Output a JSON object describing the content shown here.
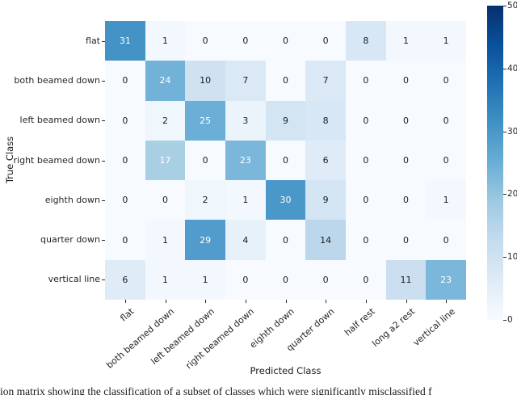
{
  "figure": {
    "caption": "ion matrix showing the classification of a subset of classes which were significantly misclassified f"
  },
  "chart_data": {
    "type": "heatmap",
    "title": "",
    "xlabel": "Predicted Class",
    "ylabel": "True Class",
    "x_categories": [
      "flat",
      "both beamed down",
      "left beamed down",
      "right beamed down",
      "eighth down",
      "quarter down",
      "half rest",
      "long a2 rest",
      "vertical line"
    ],
    "y_categories": [
      "flat",
      "both beamed down",
      "left beamed down",
      "right beamed down",
      "eighth down",
      "quarter down",
      "vertical line"
    ],
    "matrix": [
      [
        31,
        1,
        0,
        0,
        0,
        0,
        8,
        1,
        1
      ],
      [
        0,
        24,
        10,
        7,
        0,
        7,
        0,
        0,
        0
      ],
      [
        0,
        2,
        25,
        3,
        9,
        8,
        0,
        0,
        0
      ],
      [
        0,
        17,
        0,
        23,
        0,
        6,
        0,
        0,
        0
      ],
      [
        0,
        0,
        2,
        1,
        30,
        9,
        0,
        0,
        1
      ],
      [
        0,
        1,
        29,
        4,
        0,
        14,
        0,
        0,
        0
      ],
      [
        6,
        1,
        1,
        0,
        0,
        0,
        0,
        11,
        23
      ]
    ],
    "vmin": 0,
    "vmax": 50,
    "colormap": "Blues",
    "colorbar_tick_labels": [
      "50",
      "40",
      "30",
      "20",
      "10",
      "0"
    ],
    "legend_position": "right-colorbar",
    "grid": false
  },
  "colors": {
    "cmap_stops": [
      "#f7fbff",
      "#deebf7",
      "#c6dbef",
      "#9ecae1",
      "#6baed6",
      "#4292c6",
      "#2171b5",
      "#08519c",
      "#08306b"
    ],
    "annot_dark": "#1c1c1c",
    "annot_light": "#ffffff",
    "background": "#ffffff",
    "annot_white_threshold": 17
  }
}
